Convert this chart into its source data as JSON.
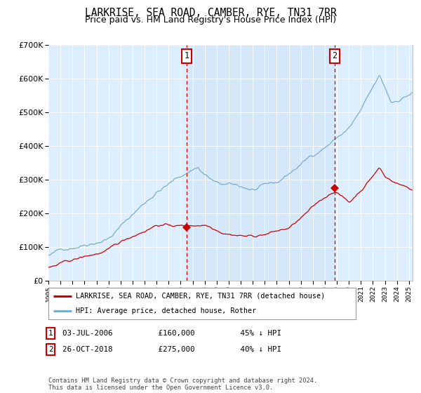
{
  "title": "LARKRISE, SEA ROAD, CAMBER, RYE, TN31 7RR",
  "subtitle": "Price paid vs. HM Land Registry's House Price Index (HPI)",
  "legend_line1": "LARKRISE, SEA ROAD, CAMBER, RYE, TN31 7RR (detached house)",
  "legend_line2": "HPI: Average price, detached house, Rother",
  "sale1_label": "1",
  "sale1_year": 2006.5,
  "sale1_price": 160000,
  "sale1_text": "03-JUL-2006          £160,000          45% ↓ HPI",
  "sale2_label": "2",
  "sale2_year": 2018.83,
  "sale2_price": 275000,
  "sale2_text": "26-OCT-2018          £275,000          40% ↓ HPI",
  "footer": "Contains HM Land Registry data © Crown copyright and database right 2024.\nThis data is licensed under the Open Government Licence v3.0.",
  "red_color": "#cc0000",
  "blue_color": "#7aadcc",
  "bg_color": "#ddeeff",
  "bg_between_color": "#cce4f5",
  "ylim_max": 700000,
  "xlim_start": 1995.0,
  "xlim_end": 2025.3
}
